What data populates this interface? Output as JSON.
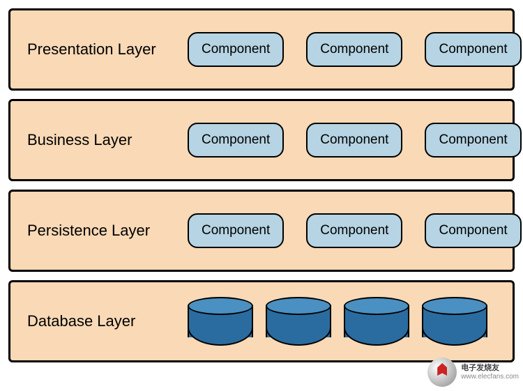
{
  "diagram": {
    "type": "layered-architecture",
    "background_color": "#ffffff",
    "layer_background": "#f9d9b6",
    "layer_border_color": "#000000",
    "layer_border_width": 3,
    "layer_border_radius": 6,
    "component_background": "#b6d4e3",
    "component_border_color": "#000000",
    "component_border_radius": 14,
    "cylinder_top_color": "#4a90c2",
    "cylinder_body_color": "#2a6ca0",
    "title_fontsize": 22,
    "component_fontsize": 19,
    "layers": [
      {
        "id": "presentation",
        "title": "Presentation Layer",
        "items_type": "component",
        "items": [
          "Component",
          "Component",
          "Component"
        ]
      },
      {
        "id": "business",
        "title": "Business Layer",
        "items_type": "component",
        "items": [
          "Component",
          "Component",
          "Component"
        ]
      },
      {
        "id": "persistence",
        "title": "Persistence Layer",
        "items_type": "component",
        "items": [
          "Component",
          "Component",
          "Component"
        ]
      },
      {
        "id": "database",
        "title": "Database Layer",
        "items_type": "cylinder",
        "count": 4
      }
    ]
  },
  "watermark": {
    "brand_cn": "电子发烧友",
    "url": "www.elecfans.com"
  }
}
